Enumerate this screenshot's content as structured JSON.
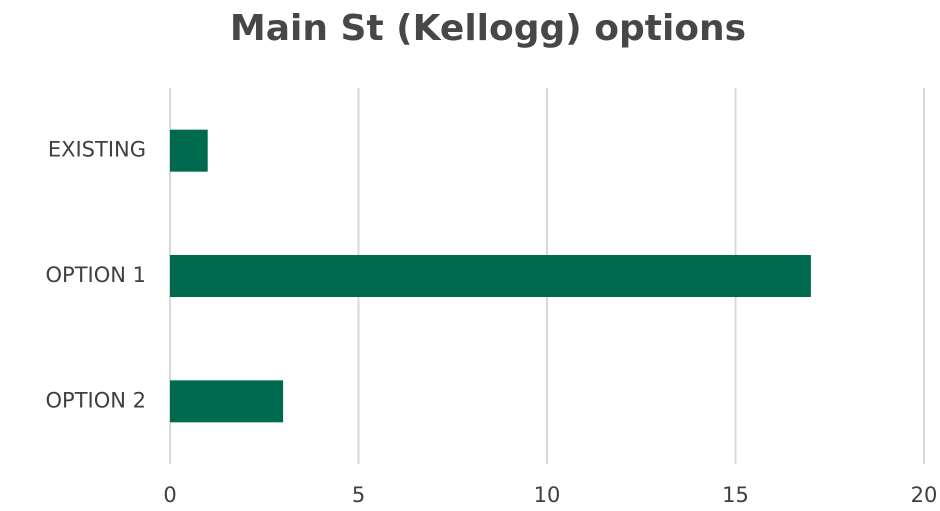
{
  "chart_data": {
    "type": "bar",
    "title": "Main St (Kellogg) options",
    "categories": [
      "EXISTING",
      "OPTION 1",
      "OPTION 2"
    ],
    "values": [
      1,
      17,
      3
    ],
    "color": "#006a4e",
    "xlim": [
      0,
      20
    ],
    "xticks": [
      0,
      5,
      10,
      15,
      20
    ],
    "grid": true
  }
}
